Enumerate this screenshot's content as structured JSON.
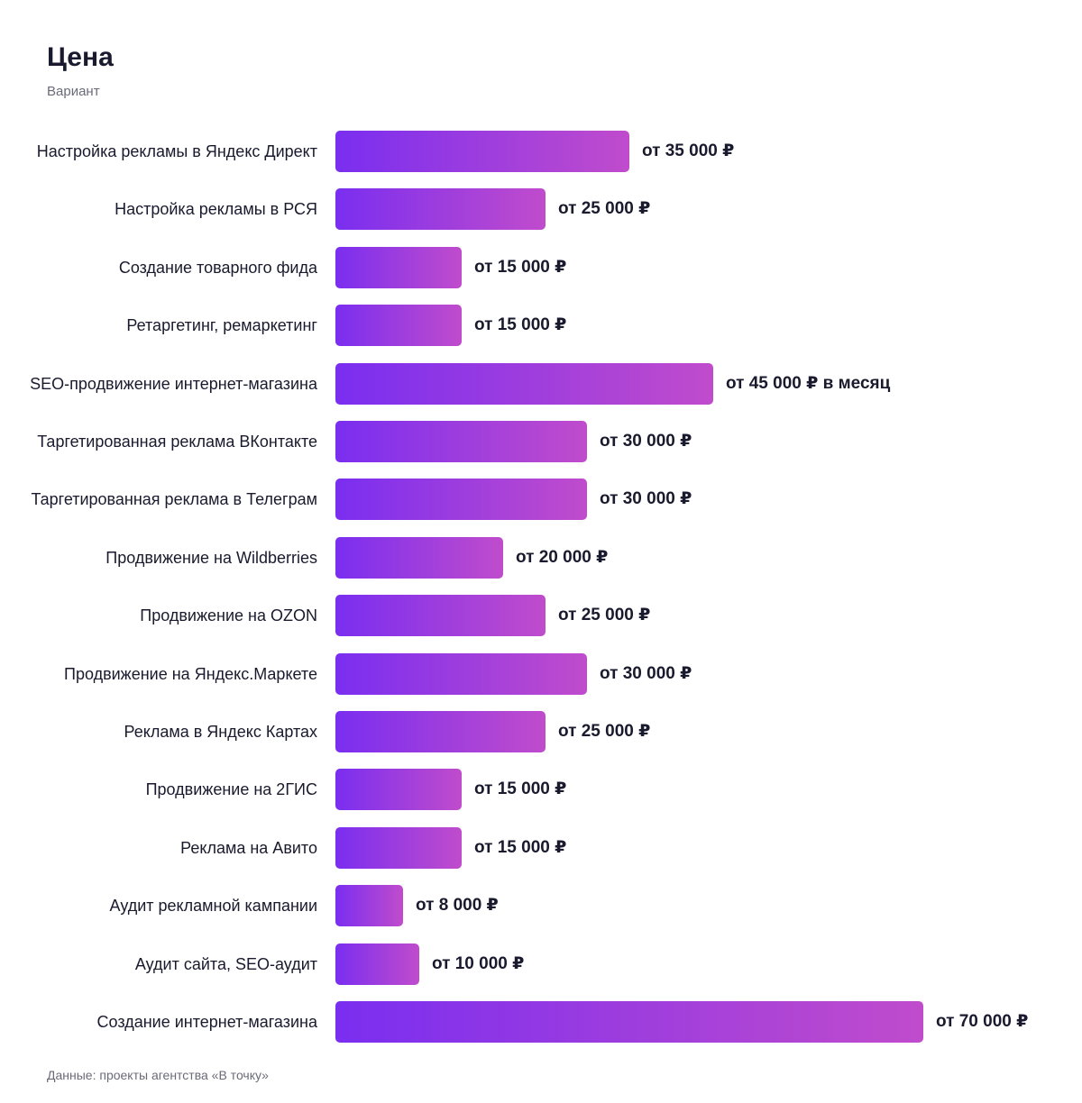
{
  "header": {
    "title": "Цена",
    "subtitle": "Вариант"
  },
  "footer": {
    "source": "Данные: проекты агентства «В точку»"
  },
  "colors": {
    "bar_gradient_start": "#7a2ef0",
    "bar_gradient_end": "#c04ccc",
    "text": "#1a1a2e",
    "muted": "#6b6b78"
  },
  "chart_data": {
    "type": "bar",
    "orientation": "horizontal",
    "title": "Цена",
    "subtitle": "Вариант",
    "categories": [
      "Настройка рекламы в Яндекс Директ",
      "Настройка рекламы в РСЯ",
      "Создание товарного фида",
      "Ретаргетинг, ремаркетинг",
      "SEO-продвижение интернет-магазина",
      "Таргетированная реклама ВКонтакте",
      "Таргетированная реклама в Телеграм",
      "Продвижение на Wildberries",
      "Продвижение на OZON",
      "Продвижение на Яндекс.Маркете",
      "Реклама в Яндекс Картах",
      "Продвижение на 2ГИС",
      "Реклама на Авито",
      "Аудит рекламной кампании",
      "Аудит сайта, SEO-аудит",
      "Создание интернет-магазина"
    ],
    "values": [
      35000,
      25000,
      15000,
      15000,
      45000,
      30000,
      30000,
      20000,
      25000,
      30000,
      25000,
      15000,
      15000,
      8000,
      10000,
      70000
    ],
    "value_labels": [
      "от 35 000 ₽",
      "от 25 000 ₽",
      "от 15 000 ₽",
      "от 15 000 ₽",
      "от 45 000 ₽ в месяц",
      "от 30 000 ₽",
      "от 30 000 ₽",
      "от 20 000 ₽",
      "от 25 000 ₽",
      "от 30 000 ₽",
      "от 25 000 ₽",
      "от 15 000 ₽",
      "от 15 000 ₽",
      "от 8 000 ₽",
      "от 10 000 ₽",
      "от 70 000 ₽"
    ],
    "xlim": [
      0,
      70000
    ],
    "grid": false,
    "legend": "none"
  }
}
